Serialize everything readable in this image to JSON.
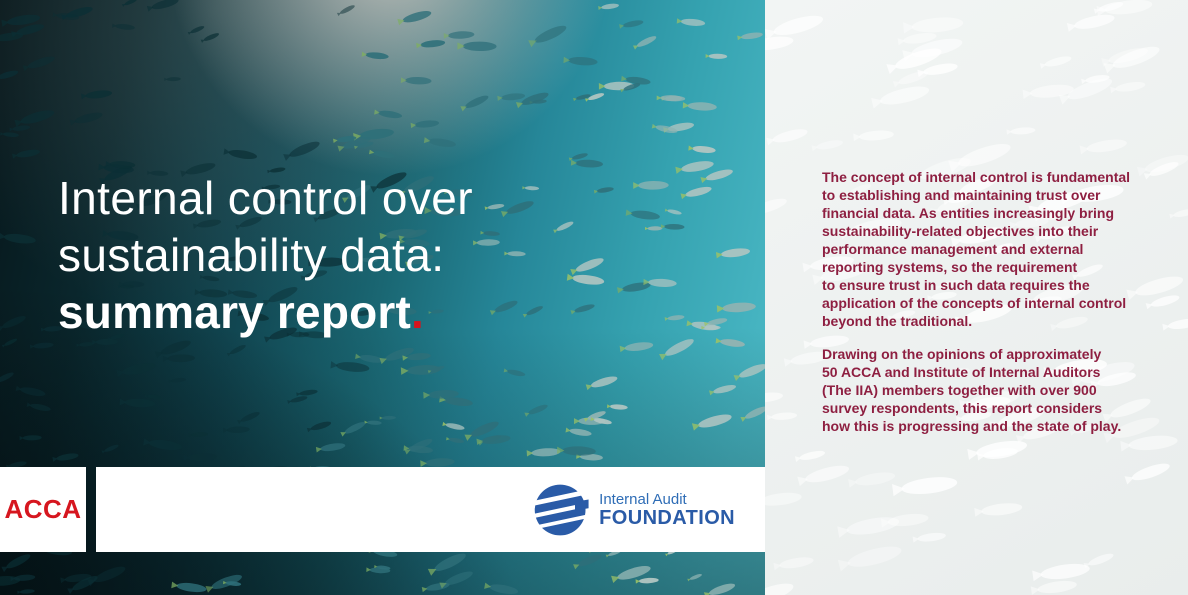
{
  "title": {
    "line1": "Internal control over",
    "line2": "sustainability data:",
    "line3_bold": "summary report",
    "dot": "."
  },
  "intro": {
    "paragraph1": "The concept of internal control is fundamental\nto establishing and maintaining trust over\nfinancial data. As entities increasingly bring\nsustainability-related objectives into their\nperformance management and external\nreporting systems, so the requirement\nto ensure trust in such data requires the\napplication of the concepts of internal control\nbeyond the traditional.",
    "paragraph2": "Drawing on the opinions of approximately\n50 ACCA and Institute of Internal Auditors\n(The IIA) members together with over 900\nsurvey respondents, this report considers\nhow this is progressing and the state of play."
  },
  "logos": {
    "acca": "ACCA",
    "foundation_top": "Internal Audit",
    "foundation_bottom": "FOUNDATION"
  },
  "colors": {
    "title_text": "#ffffff",
    "accent_red_dot": "#d7141d",
    "acca_red": "#d6161f",
    "foundation_blue": "#2a5ba7",
    "intro_maroon": "#8e1f41",
    "panel_background": "#ecefee",
    "photo_teal": "#2f98a6"
  }
}
